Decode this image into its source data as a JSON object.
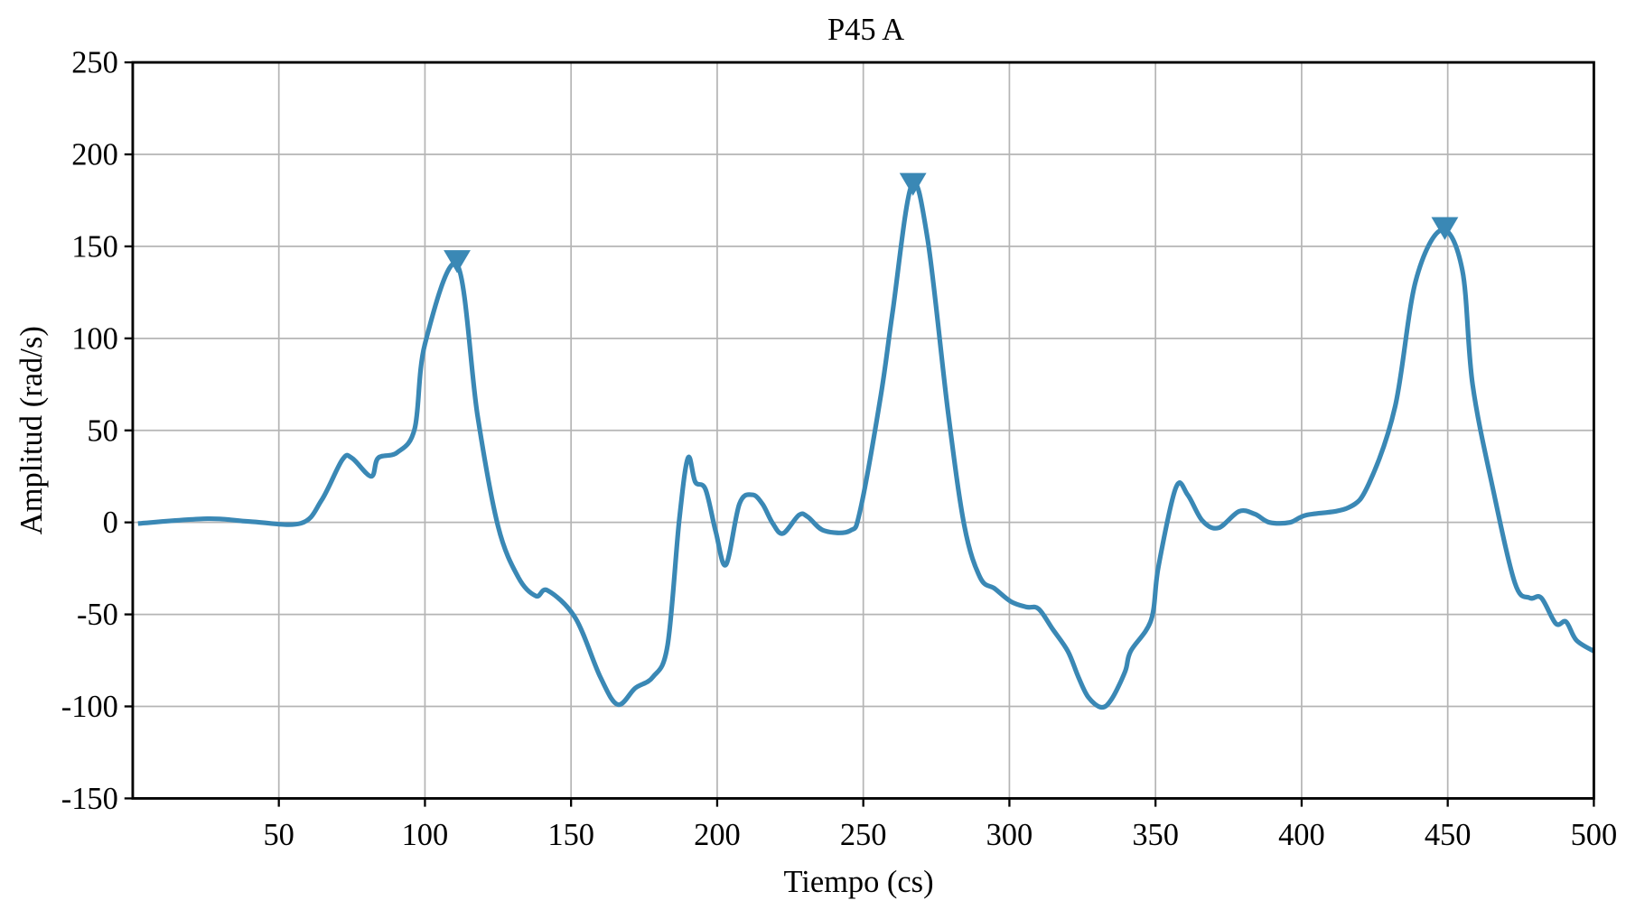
{
  "chart_data": {
    "type": "line",
    "title": "P45 A",
    "xlabel": "Tiempo (cs)",
    "ylabel": "Amplitud (rad/s)",
    "xlim": [
      0,
      500
    ],
    "ylim": [
      -150,
      250
    ],
    "xticks": [
      50,
      100,
      150,
      200,
      250,
      300,
      350,
      400,
      450,
      500
    ],
    "yticks": [
      -150,
      -100,
      -50,
      0,
      50,
      100,
      150,
      200,
      250
    ],
    "grid": true,
    "line_color": "#3a88b5",
    "series": [
      {
        "name": "P45 A",
        "x": [
          1.8,
          25.5,
          40,
          57.5,
          64.6,
          71.7,
          75,
          81.6,
          84,
          90.5,
          96.5,
          100,
          111,
          118,
          125,
          132,
          138,
          142,
          151.5,
          160,
          166,
          172,
          178,
          183,
          187,
          190,
          192.5,
          196,
          199.5,
          203,
          207.6,
          212,
          215.5,
          219,
          222.5,
          228,
          231,
          236.6,
          245.5,
          249,
          256,
          260,
          266.5,
          272,
          279,
          284.6,
          290,
          295,
          300.5,
          305.9,
          310,
          314.8,
          320,
          323.6,
          327,
          331.5,
          335,
          339.6,
          341.5,
          348.5,
          351,
          357,
          361,
          366,
          371.5,
          378.6,
          384,
          389,
          396,
          401.7,
          416,
          423,
          432,
          439,
          448,
          455,
          458.5,
          465.5,
          473,
          478,
          482,
          487,
          490.5,
          494,
          500
        ],
        "y": [
          -0.6,
          2,
          0.5,
          -0.5,
          12,
          34,
          35,
          25,
          35,
          38,
          51,
          97,
          140,
          58,
          -2,
          -30,
          -40,
          -37,
          -52,
          -84,
          -99,
          -90,
          -84,
          -67,
          1,
          35,
          22,
          18,
          -5,
          -23,
          10,
          15,
          10,
          -0.5,
          -6,
          4,
          3,
          -4.5,
          -4.5,
          7,
          69,
          114,
          183,
          154,
          60,
          -2,
          -30,
          -36,
          -43,
          -46,
          -47,
          -58,
          -70,
          -84,
          -95,
          -100.5,
          -96,
          -81,
          -70,
          -53,
          -24,
          19,
          15,
          1,
          -3,
          6,
          4.5,
          0,
          0,
          4,
          8,
          21,
          63,
          131,
          159,
          137,
          75,
          18,
          -33,
          -41,
          -41,
          -55,
          -54,
          -64,
          -70
        ]
      }
    ],
    "peak_markers": [
      {
        "x": 111,
        "y": 140
      },
      {
        "x": 267,
        "y": 182
      },
      {
        "x": 449,
        "y": 158
      }
    ]
  }
}
